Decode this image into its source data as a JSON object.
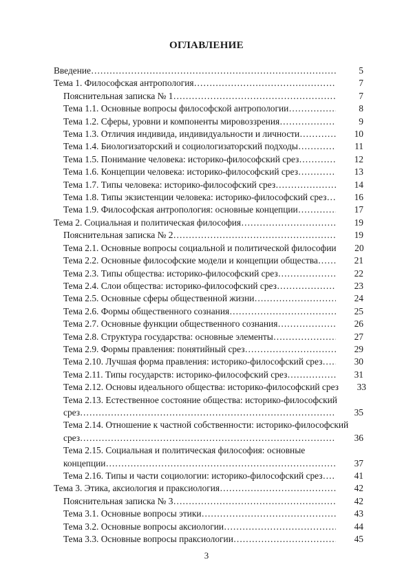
{
  "title": "ОГЛАВЛЕНИЕ",
  "entries": [
    {
      "level": 0,
      "text": "Введение",
      "page": "5"
    },
    {
      "level": 0,
      "text": "Тема 1. Философская антропология",
      "page": "7"
    },
    {
      "level": 1,
      "text": "Пояснительная записка № 1",
      "page": "7"
    },
    {
      "level": 1,
      "text": "Тема 1.1. Основные вопросы философской антропологии",
      "page": "8"
    },
    {
      "level": 1,
      "text": "Тема 1.2. Сферы, уровни и компоненты мировоззрения",
      "page": "9"
    },
    {
      "level": 1,
      "text": "Тема 1.3. Отличия индивида, индивидуальности и личности",
      "page": "10"
    },
    {
      "level": 1,
      "text": "Тема 1.4. Биологизаторский и социологизаторский подходы",
      "page": "11"
    },
    {
      "level": 1,
      "text": "Тема 1.5. Понимание человека: историко-философский срез",
      "page": "12"
    },
    {
      "level": 1,
      "text": "Тема 1.6. Концепции человека: историко-философский срез",
      "page": "13"
    },
    {
      "level": 1,
      "text": "Тема 1.7. Типы человека: историко-философский срез",
      "page": "14"
    },
    {
      "level": 1,
      "text": "Тема 1.8. Типы экзистенции человека: историко-философский срез",
      "page": "16"
    },
    {
      "level": 1,
      "text": "Тема 1.9. Философская антропология: основные концепции",
      "page": "17"
    },
    {
      "level": 0,
      "text": "Тема 2. Социальная и политическая философия",
      "page": "19"
    },
    {
      "level": 1,
      "text": "Пояснительная записка № 2",
      "page": "19"
    },
    {
      "level": 1,
      "text": "Тема 2.1. Основные вопросы социальной и политической философии",
      "page": "20"
    },
    {
      "level": 1,
      "text": "Тема 2.2. Основные философские модели и концепции общества",
      "page": "21"
    },
    {
      "level": 1,
      "text": "Тема 2.3. Типы общества: историко-философский срез",
      "page": "22"
    },
    {
      "level": 1,
      "text": "Тема 2.4. Слои общества: историко-философский срез",
      "page": "23"
    },
    {
      "level": 1,
      "text": "Тема 2.5. Основные сферы общественной жизни",
      "page": "24"
    },
    {
      "level": 1,
      "text": "Тема 2.6. Формы общественного сознания",
      "page": "25"
    },
    {
      "level": 1,
      "text": "Тема 2.7. Основные функции общественного сознания",
      "page": "26"
    },
    {
      "level": 1,
      "text": "Тема 2.8. Структура государства: основные элементы",
      "page": "27"
    },
    {
      "level": 1,
      "text": "Тема 2.9. Формы правления: понятийный срез",
      "page": "29"
    },
    {
      "level": 1,
      "text": "Тема 2.10. Лучшая форма правления: историко-философский срез",
      "page": "30"
    },
    {
      "level": 1,
      "text": "Тема 2.11. Типы государств: историко-философский срез",
      "page": "31"
    },
    {
      "level": 1,
      "text": "Тема 2.12. Основы идеального общества: историко-философский срез",
      "page": "33"
    },
    {
      "level": 1,
      "text": "Тема 2.13. Естественное состояние общества: историко-философский",
      "cont": "срез",
      "page": "35"
    },
    {
      "level": 1,
      "text": "Тема 2.14. Отношение к частной собственности: историко-философский",
      "cont": "срез",
      "page": "36"
    },
    {
      "level": 1,
      "text": "Тема 2.15. Социальная и политическая философия: основные",
      "cont": "концепции",
      "page": "37"
    },
    {
      "level": 1,
      "text": "Тема 2.16. Типы и части социологии: историко-философский срез",
      "page": "41"
    },
    {
      "level": 0,
      "text": "Тема 3. Этика, аксиология и праксиология",
      "page": "42"
    },
    {
      "level": 1,
      "text": "Пояснительная записка № 3",
      "page": "42"
    },
    {
      "level": 1,
      "text": "Тема 3.1. Основные вопросы этики",
      "page": "43"
    },
    {
      "level": 1,
      "text": "Тема 3.2. Основные вопросы аксиологии",
      "page": "44"
    },
    {
      "level": 1,
      "text": "Тема 3.3. Основные вопросы праксиологии",
      "page": "45"
    }
  ],
  "page_number": "3"
}
